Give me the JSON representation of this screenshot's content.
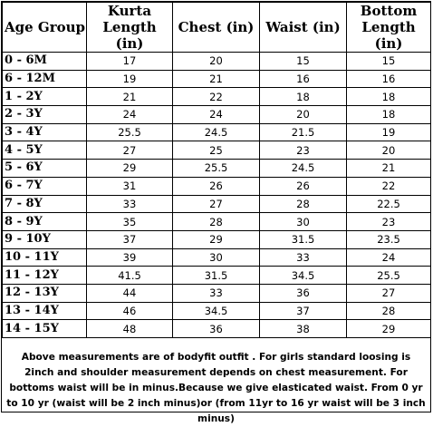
{
  "table": {
    "headers": [
      "Age Group",
      "Kurta Length (in)",
      "Chest (in)",
      "Waist (in)",
      "Bottom Length (in)"
    ],
    "rows": [
      [
        "0 - 6M",
        "17",
        "20",
        "15",
        "15"
      ],
      [
        "6 - 12M",
        "19",
        "21",
        "16",
        "16"
      ],
      [
        "1 - 2Y",
        "21",
        "22",
        "18",
        "18"
      ],
      [
        "2 - 3Y",
        "24",
        "24",
        "20",
        "18"
      ],
      [
        "3 - 4Y",
        "25.5",
        "24.5",
        "21.5",
        "19"
      ],
      [
        "4 - 5Y",
        "27",
        "25",
        "23",
        "20"
      ],
      [
        "5 - 6Y",
        "29",
        "25.5",
        "24.5",
        "21"
      ],
      [
        "6 - 7Y",
        "31",
        "26",
        "26",
        "22"
      ],
      [
        "7 - 8Y",
        "33",
        "27",
        "28",
        "22.5"
      ],
      [
        "8 - 9Y",
        "35",
        "28",
        "30",
        "23"
      ],
      [
        "9 - 10Y",
        "37",
        "29",
        "31.5",
        "23.5"
      ],
      [
        "10 - 11Y",
        "39",
        "30",
        "33",
        "24"
      ],
      [
        "11 - 12Y",
        "41.5",
        "31.5",
        "34.5",
        "25.5"
      ],
      [
        "12 - 13Y",
        "44",
        "33",
        "36",
        "27"
      ],
      [
        "13 - 14Y",
        "46",
        "34.5",
        "37",
        "28"
      ],
      [
        "14 - 15Y",
        "48",
        "36",
        "38",
        "29"
      ]
    ]
  },
  "note": "Above measurements are of bodyfit outfit . For girls standard loosing is 2inch and shoulder measurement depends on chest measurement. For bottoms waist will be in minus.Because we give elasticated waist. From 0 yr to 10 yr (waist will be 2 inch minus)or (from 11yr to 16 yr waist will be 3 inch minus)"
}
